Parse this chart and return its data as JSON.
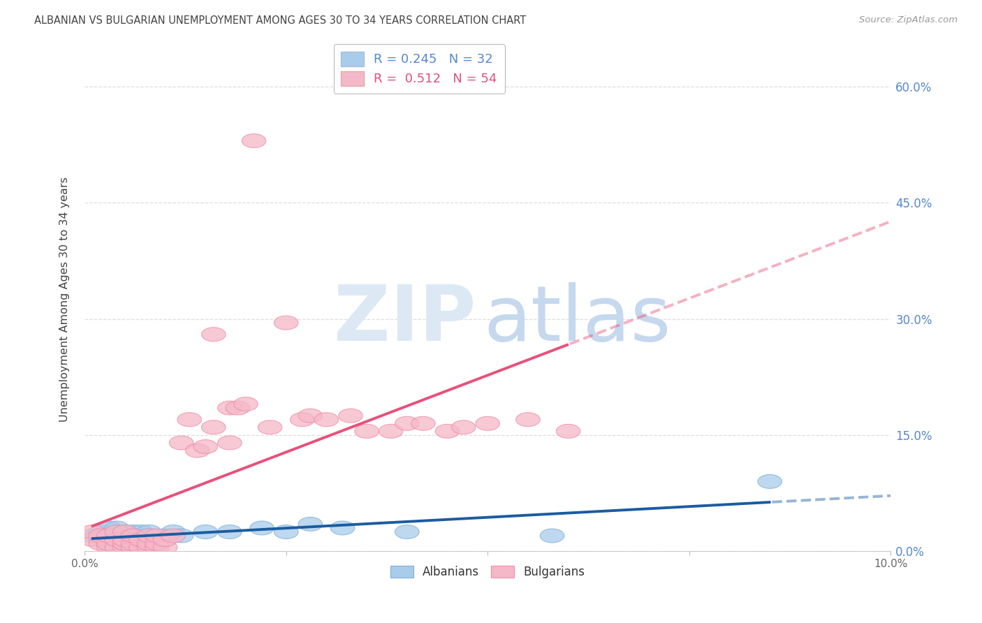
{
  "title": "ALBANIAN VS BULGARIAN UNEMPLOYMENT AMONG AGES 30 TO 34 YEARS CORRELATION CHART",
  "source": "Source: ZipAtlas.com",
  "ylabel": "Unemployment Among Ages 30 to 34 years",
  "xlim": [
    0.0,
    0.1
  ],
  "ylim": [
    0.0,
    0.65
  ],
  "yticks": [
    0.0,
    0.15,
    0.3,
    0.45,
    0.6
  ],
  "xticks": [
    0.0,
    0.025,
    0.05,
    0.075,
    0.1
  ],
  "xtick_labels": [
    "0.0%",
    "",
    "",
    "",
    "10.0%"
  ],
  "ytick_labels_right": [
    "0.0%",
    "15.0%",
    "30.0%",
    "45.0%",
    "60.0%"
  ],
  "albanian_color": "#A8CCEA",
  "bulgarian_color": "#F5B8C8",
  "albanian_edge_color": "#7AAFD4",
  "bulgarian_edge_color": "#EE8AA8",
  "albanian_line_color": "#1A5CA0",
  "bulgarian_line_color": "#E8507A",
  "background_color": "#FFFFFF",
  "grid_color": "#DDDDDD",
  "watermark_zip_color": "#DDE8F5",
  "watermark_atlas_color": "#C5D8EE",
  "albanian_x": [
    0.001,
    0.002,
    0.002,
    0.003,
    0.003,
    0.003,
    0.004,
    0.004,
    0.004,
    0.005,
    0.005,
    0.005,
    0.006,
    0.006,
    0.006,
    0.007,
    0.007,
    0.008,
    0.008,
    0.009,
    0.01,
    0.011,
    0.012,
    0.015,
    0.018,
    0.022,
    0.025,
    0.028,
    0.032,
    0.04,
    0.058,
    0.085
  ],
  "albanian_y": [
    0.02,
    0.015,
    0.025,
    0.01,
    0.02,
    0.03,
    0.015,
    0.02,
    0.03,
    0.01,
    0.02,
    0.025,
    0.01,
    0.02,
    0.025,
    0.015,
    0.025,
    0.015,
    0.025,
    0.015,
    0.02,
    0.025,
    0.02,
    0.025,
    0.025,
    0.03,
    0.025,
    0.035,
    0.03,
    0.025,
    0.02,
    0.09
  ],
  "bulgarian_x": [
    0.001,
    0.001,
    0.002,
    0.002,
    0.003,
    0.003,
    0.003,
    0.004,
    0.004,
    0.004,
    0.005,
    0.005,
    0.005,
    0.005,
    0.006,
    0.006,
    0.006,
    0.007,
    0.007,
    0.008,
    0.008,
    0.008,
    0.009,
    0.009,
    0.009,
    0.01,
    0.01,
    0.011,
    0.012,
    0.013,
    0.014,
    0.015,
    0.016,
    0.016,
    0.018,
    0.018,
    0.019,
    0.02,
    0.021,
    0.023,
    0.025,
    0.027,
    0.028,
    0.03,
    0.033,
    0.035,
    0.038,
    0.04,
    0.042,
    0.045,
    0.047,
    0.05,
    0.055,
    0.06
  ],
  "bulgarian_y": [
    0.015,
    0.025,
    0.01,
    0.02,
    0.005,
    0.01,
    0.02,
    0.005,
    0.015,
    0.025,
    0.005,
    0.01,
    0.015,
    0.025,
    0.005,
    0.01,
    0.02,
    0.005,
    0.015,
    0.005,
    0.01,
    0.02,
    0.005,
    0.01,
    0.02,
    0.005,
    0.015,
    0.02,
    0.14,
    0.17,
    0.13,
    0.135,
    0.16,
    0.28,
    0.14,
    0.185,
    0.185,
    0.19,
    0.53,
    0.16,
    0.295,
    0.17,
    0.175,
    0.17,
    0.175,
    0.155,
    0.155,
    0.165,
    0.165,
    0.155,
    0.16,
    0.165,
    0.17,
    0.155
  ]
}
